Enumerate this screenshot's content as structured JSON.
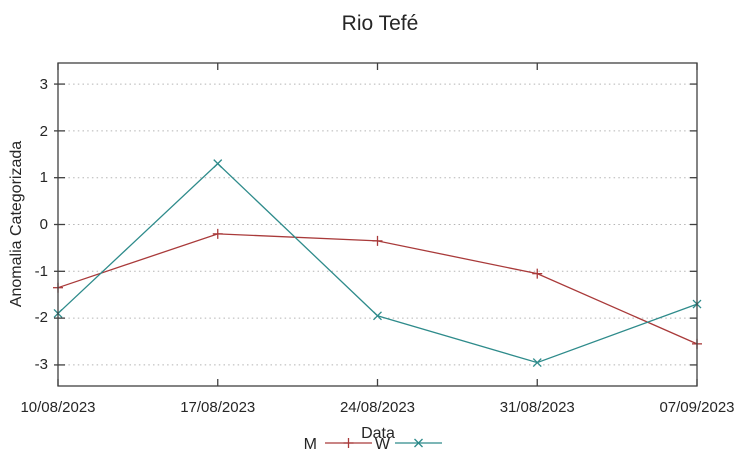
{
  "window": {
    "background": "#ffffff"
  },
  "chart_data": {
    "type": "line",
    "title": "Rio Tefé",
    "xlabel": "Data",
    "ylabel": "Anomalia Categorizada",
    "categories": [
      "10/08/2023",
      "17/08/2023",
      "24/08/2023",
      "31/08/2023",
      "07/09/2023"
    ],
    "yticks": [
      -3,
      -2,
      -1,
      0,
      1,
      2,
      3
    ],
    "ylim": [
      -3.45,
      3.45
    ],
    "grid": "horizontal-dotted",
    "legend_position": "bottom-center",
    "series": [
      {
        "name": "M",
        "marker": "plus",
        "color": "#a93a3a",
        "values": [
          -1.35,
          -0.2,
          -0.35,
          -1.05,
          -2.55
        ]
      },
      {
        "name": "W",
        "marker": "cross",
        "color": "#2e8b8b",
        "values": [
          -1.9,
          1.3,
          -1.95,
          -2.95,
          -1.7
        ]
      }
    ],
    "colors": {
      "grid": "#b5b5b5",
      "border": "#404040",
      "text": "#262626"
    }
  }
}
